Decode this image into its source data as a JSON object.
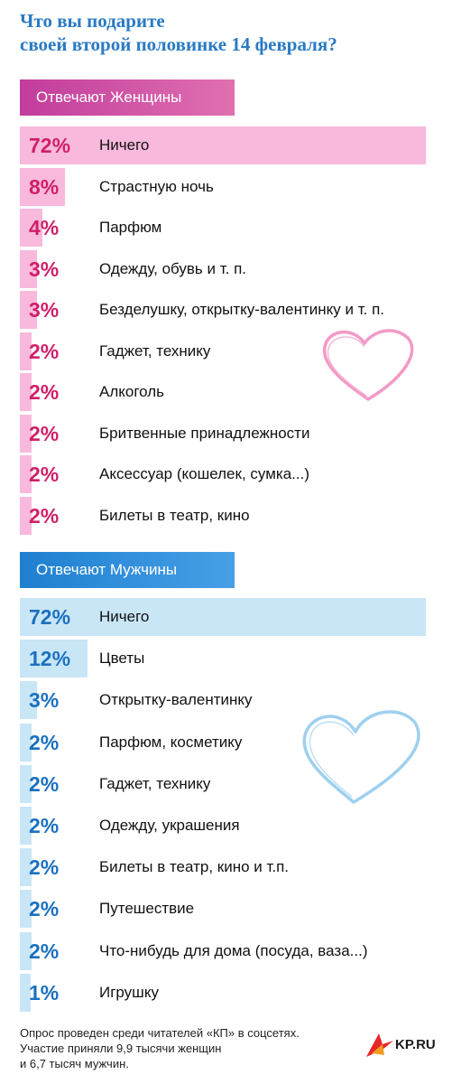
{
  "title": {
    "line1": "Что вы подарите",
    "line2": "своей второй половинке 14 февраля?"
  },
  "women": {
    "header": "Отвечают Женщины",
    "items": [
      {
        "pct": "72%",
        "value": 72,
        "label": "Ничего"
      },
      {
        "pct": "8%",
        "value": 8,
        "label": "Страстную ночь"
      },
      {
        "pct": "4%",
        "value": 4,
        "label": "Парфюм"
      },
      {
        "pct": "3%",
        "value": 3,
        "label": "Одежду, обувь и т. п."
      },
      {
        "pct": "3%",
        "value": 3,
        "label": "Безделушку, открытку-валентинку и т. п."
      },
      {
        "pct": "2%",
        "value": 2,
        "label": "Гаджет, технику"
      },
      {
        "pct": "2%",
        "value": 2,
        "label": "Алкоголь"
      },
      {
        "pct": "2%",
        "value": 2,
        "label": "Бритвенные принадлежности"
      },
      {
        "pct": "2%",
        "value": 2,
        "label": "Аксессуар (кошелек, сумка...)"
      },
      {
        "pct": "2%",
        "value": 2,
        "label": "Билеты в театр, кино"
      }
    ]
  },
  "men": {
    "header": "Отвечают Мужчины",
    "items": [
      {
        "pct": "72%",
        "value": 72,
        "label": "Ничего"
      },
      {
        "pct": "12%",
        "value": 12,
        "label": "Цветы"
      },
      {
        "pct": "3%",
        "value": 3,
        "label": "Открытку-валентинку"
      },
      {
        "pct": "2%",
        "value": 2,
        "label": "Парфюм, косметику"
      },
      {
        "pct": "2%",
        "value": 2,
        "label": "Гаджет, технику"
      },
      {
        "pct": "2%",
        "value": 2,
        "label": "Одежду, украшения"
      },
      {
        "pct": "2%",
        "value": 2,
        "label": "Билеты в театр, кино и т.п."
      },
      {
        "pct": "2%",
        "value": 2,
        "label": "Путешествие"
      },
      {
        "pct": "2%",
        "value": 2,
        "label": "Что-нибудь для дома (посуда, ваза...)"
      },
      {
        "pct": "1%",
        "value": 1,
        "label": "Игрушку"
      }
    ]
  },
  "footer": {
    "line1": "Опрос проведен среди читателей «КП» в соцсетях.",
    "line2": "Участие приняли 9,9 тысячи женщин",
    "line3": "и 6,7 тысяч мужчин."
  },
  "logo": {
    "text": "KP.RU"
  },
  "colors": {
    "title": "#2a7ac4",
    "women_bar": "#f8b9dc",
    "women_pct": "#d01f6a",
    "men_bar": "#c8e6f6",
    "men_pct": "#1b70c0"
  },
  "chart_data": [
    {
      "type": "bar",
      "title": "Отвечают Женщины",
      "categories": [
        "Ничего",
        "Страстную ночь",
        "Парфюм",
        "Одежду, обувь и т. п.",
        "Безделушку, открытку-валентинку и т. п.",
        "Гаджет, технику",
        "Алкоголь",
        "Бритвенные принадлежности",
        "Аксессуар (кошелек, сумка...)",
        "Билеты в театр, кино"
      ],
      "values": [
        72,
        8,
        4,
        3,
        3,
        2,
        2,
        2,
        2,
        2
      ],
      "unit": "%"
    },
    {
      "type": "bar",
      "title": "Отвечают Мужчины",
      "categories": [
        "Ничего",
        "Цветы",
        "Открытку-валентинку",
        "Парфюм, косметику",
        "Гаджет, технику",
        "Одежду, украшения",
        "Билеты в театр, кино и т.п.",
        "Путешествие",
        "Что-нибудь для дома (посуда, ваза...)",
        "Игрушку"
      ],
      "values": [
        72,
        12,
        3,
        2,
        2,
        2,
        2,
        2,
        2,
        1
      ],
      "unit": "%"
    }
  ]
}
